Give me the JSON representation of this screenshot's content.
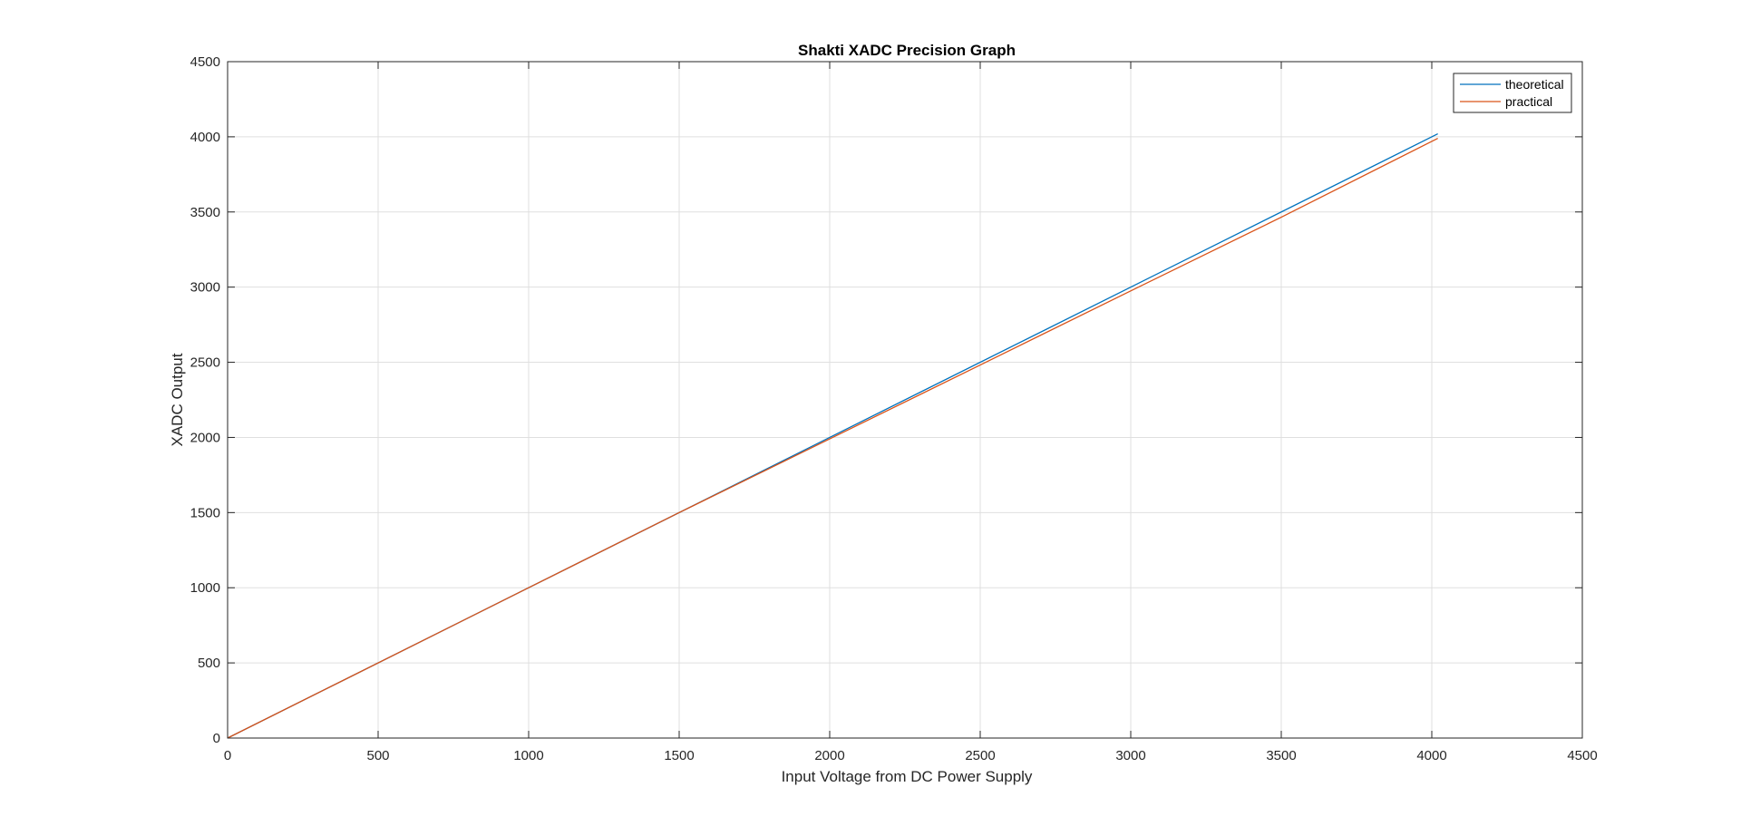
{
  "chart_data": {
    "type": "line",
    "title": "Shakti XADC Precision Graph",
    "xlabel": "Input Voltage from DC Power Supply",
    "ylabel": "XADC Output",
    "xlim": [
      0,
      4500
    ],
    "ylim": [
      0,
      4500
    ],
    "x_ticks": [
      "0",
      "500",
      "1000",
      "1500",
      "2000",
      "2500",
      "3000",
      "3500",
      "4000",
      "4500"
    ],
    "y_ticks": [
      "0",
      "500",
      "1000",
      "1500",
      "2000",
      "2500",
      "3000",
      "3500",
      "4000",
      "4500"
    ],
    "grid": true,
    "legend_position": "top-right",
    "series": [
      {
        "name": "theoretical",
        "color": "#0072BD",
        "x": [
          0,
          1000,
          2000,
          3000,
          4020
        ],
        "y": [
          0,
          1000,
          2000,
          3000,
          4020
        ]
      },
      {
        "name": "practical",
        "color": "#D95319",
        "x": [
          0,
          1000,
          1500,
          2000,
          2500,
          3000,
          3500,
          4020
        ],
        "y": [
          0,
          1000,
          1500,
          1990,
          2482,
          2975,
          3465,
          3990
        ]
      }
    ]
  }
}
